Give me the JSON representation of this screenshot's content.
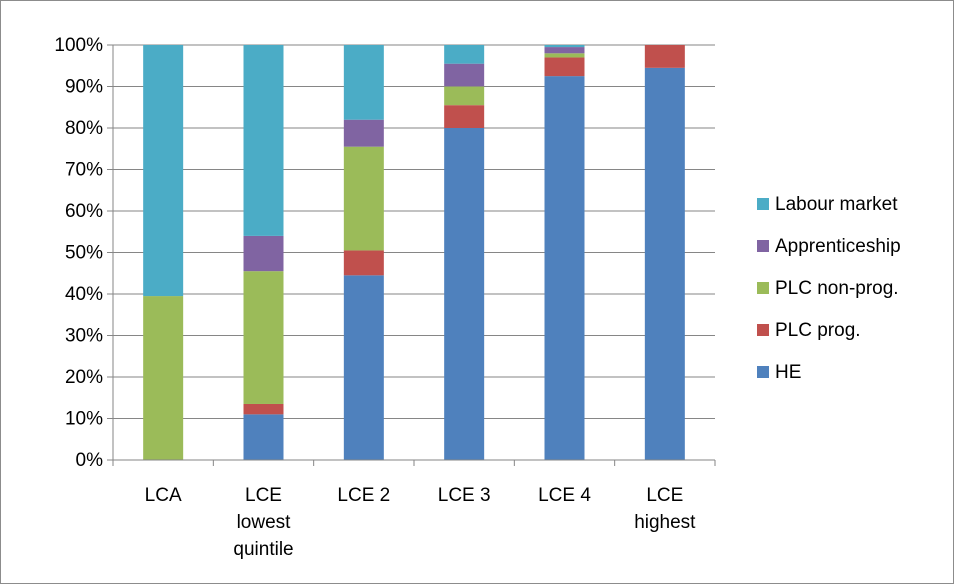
{
  "chart_data": {
    "type": "bar",
    "stacked": true,
    "percent": true,
    "categories": [
      [
        "LCA"
      ],
      [
        "LCE",
        "lowest",
        "quintile"
      ],
      [
        "LCE 2"
      ],
      [
        "LCE 3"
      ],
      [
        "LCE 4"
      ],
      [
        "LCE",
        "highest"
      ]
    ],
    "series": [
      {
        "name": "HE",
        "color": "#4f81bd",
        "values": [
          0,
          11,
          44.5,
          80,
          92.5,
          94.5
        ]
      },
      {
        "name": "PLC prog.",
        "color": "#c0504d",
        "values": [
          0,
          2.5,
          6,
          5.5,
          4.5,
          5.5
        ]
      },
      {
        "name": "PLC non-prog.",
        "color": "#9bbb59",
        "values": [
          39.5,
          32,
          25,
          4.5,
          1,
          0
        ]
      },
      {
        "name": "Apprenticeship",
        "color": "#8064a2",
        "values": [
          0,
          8.5,
          6.5,
          5.5,
          1.5,
          0
        ]
      },
      {
        "name": "Labour market",
        "color": "#4bacc6",
        "values": [
          60.5,
          46,
          18,
          4.5,
          0.5,
          0
        ]
      }
    ],
    "y_ticks": [
      "0%",
      "10%",
      "20%",
      "30%",
      "40%",
      "50%",
      "60%",
      "70%",
      "80%",
      "90%",
      "100%"
    ],
    "ylim": [
      0,
      100
    ],
    "grid": true,
    "legend_position": "right"
  }
}
